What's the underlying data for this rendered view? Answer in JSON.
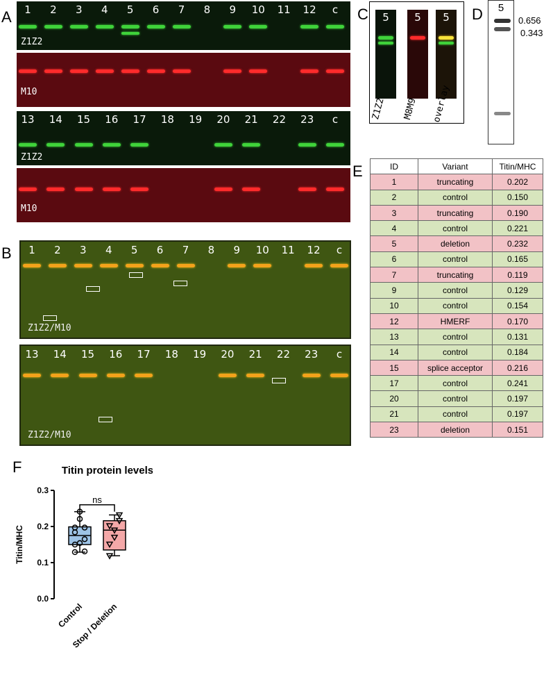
{
  "panel_letters": {
    "a": "A",
    "b": "B",
    "c": "C",
    "d": "D",
    "e": "E",
    "f": "F"
  },
  "panel_a": {
    "row1_lanes": [
      "1",
      "2",
      "3",
      "4",
      "5",
      "6",
      "7",
      "8",
      "9",
      "10",
      "11",
      "12",
      "c"
    ],
    "row2_lanes": [
      "13",
      "14",
      "15",
      "16",
      "17",
      "18",
      "19",
      "20",
      "21",
      "22",
      "23",
      "c"
    ],
    "green_label": "Z1Z2",
    "red_label": "M10"
  },
  "panel_b": {
    "row1_lanes": [
      "1",
      "2",
      "3",
      "4",
      "5",
      "6",
      "7",
      "8",
      "9",
      "10",
      "11",
      "12",
      "c"
    ],
    "row2_lanes": [
      "13",
      "14",
      "15",
      "16",
      "17",
      "18",
      "19",
      "20",
      "21",
      "22",
      "23",
      "c"
    ],
    "label": "Z1Z2/M10"
  },
  "panel_c": {
    "lane": "5",
    "labels": [
      "Z1Z2",
      "M8M9",
      "overlay"
    ]
  },
  "panel_d": {
    "lane": "5",
    "value_top": "0.656",
    "value_bottom": "0.343"
  },
  "panel_e": {
    "headers": [
      "ID",
      "Variant",
      "Titin/MHC"
    ],
    "rows": [
      {
        "id": "1",
        "variant": "truncating",
        "ratio": "0.202",
        "group": "trunc"
      },
      {
        "id": "2",
        "variant": "control",
        "ratio": "0.150",
        "group": "ctrl"
      },
      {
        "id": "3",
        "variant": "truncating",
        "ratio": "0.190",
        "group": "trunc"
      },
      {
        "id": "4",
        "variant": "control",
        "ratio": "0.221",
        "group": "ctrl"
      },
      {
        "id": "5",
        "variant": "deletion",
        "ratio": "0.232",
        "group": "trunc"
      },
      {
        "id": "6",
        "variant": "control",
        "ratio": "0.165",
        "group": "ctrl"
      },
      {
        "id": "7",
        "variant": "truncating",
        "ratio": "0.119",
        "group": "trunc"
      },
      {
        "id": "9",
        "variant": "control",
        "ratio": "0.129",
        "group": "ctrl"
      },
      {
        "id": "10",
        "variant": "control",
        "ratio": "0.154",
        "group": "ctrl"
      },
      {
        "id": "12",
        "variant": "HMERF",
        "ratio": "0.170",
        "group": "trunc"
      },
      {
        "id": "13",
        "variant": "control",
        "ratio": "0.131",
        "group": "ctrl"
      },
      {
        "id": "14",
        "variant": "control",
        "ratio": "0.184",
        "group": "ctrl"
      },
      {
        "id": "15",
        "variant": "splice acceptor",
        "ratio": "0.216",
        "group": "trunc"
      },
      {
        "id": "17",
        "variant": "control",
        "ratio": "0.241",
        "group": "ctrl"
      },
      {
        "id": "20",
        "variant": "control",
        "ratio": "0.197",
        "group": "ctrl"
      },
      {
        "id": "21",
        "variant": "control",
        "ratio": "0.197",
        "group": "ctrl"
      },
      {
        "id": "23",
        "variant": "deletion",
        "ratio": "0.151",
        "group": "trunc"
      }
    ],
    "colors": {
      "trunc": "#f2c2c6",
      "ctrl": "#d7e5bd"
    }
  },
  "chart_data": {
    "type": "box",
    "title": "Titin protein levels",
    "ylabel": "Titin/MHC",
    "ylim": [
      0.0,
      0.3
    ],
    "yticks": [
      "0.0",
      "0.1",
      "0.2",
      "0.3"
    ],
    "categories": [
      "Control",
      "Stop / Deletion"
    ],
    "significance": "ns",
    "series": [
      {
        "name": "Control",
        "color": "#9dc3e6",
        "marker": "circle",
        "values": [
          0.15,
          0.221,
          0.165,
          0.129,
          0.154,
          0.131,
          0.184,
          0.241,
          0.197,
          0.197
        ],
        "whisker_low": 0.129,
        "q1": 0.15,
        "median": 0.175,
        "q3": 0.199,
        "whisker_high": 0.241
      },
      {
        "name": "Stop / Deletion",
        "color": "#f4a8a8",
        "marker": "triangle-down",
        "values": [
          0.202,
          0.19,
          0.232,
          0.119,
          0.17,
          0.216,
          0.151
        ],
        "whisker_low": 0.119,
        "q1": 0.135,
        "median": 0.19,
        "q3": 0.216,
        "whisker_high": 0.232
      }
    ]
  }
}
